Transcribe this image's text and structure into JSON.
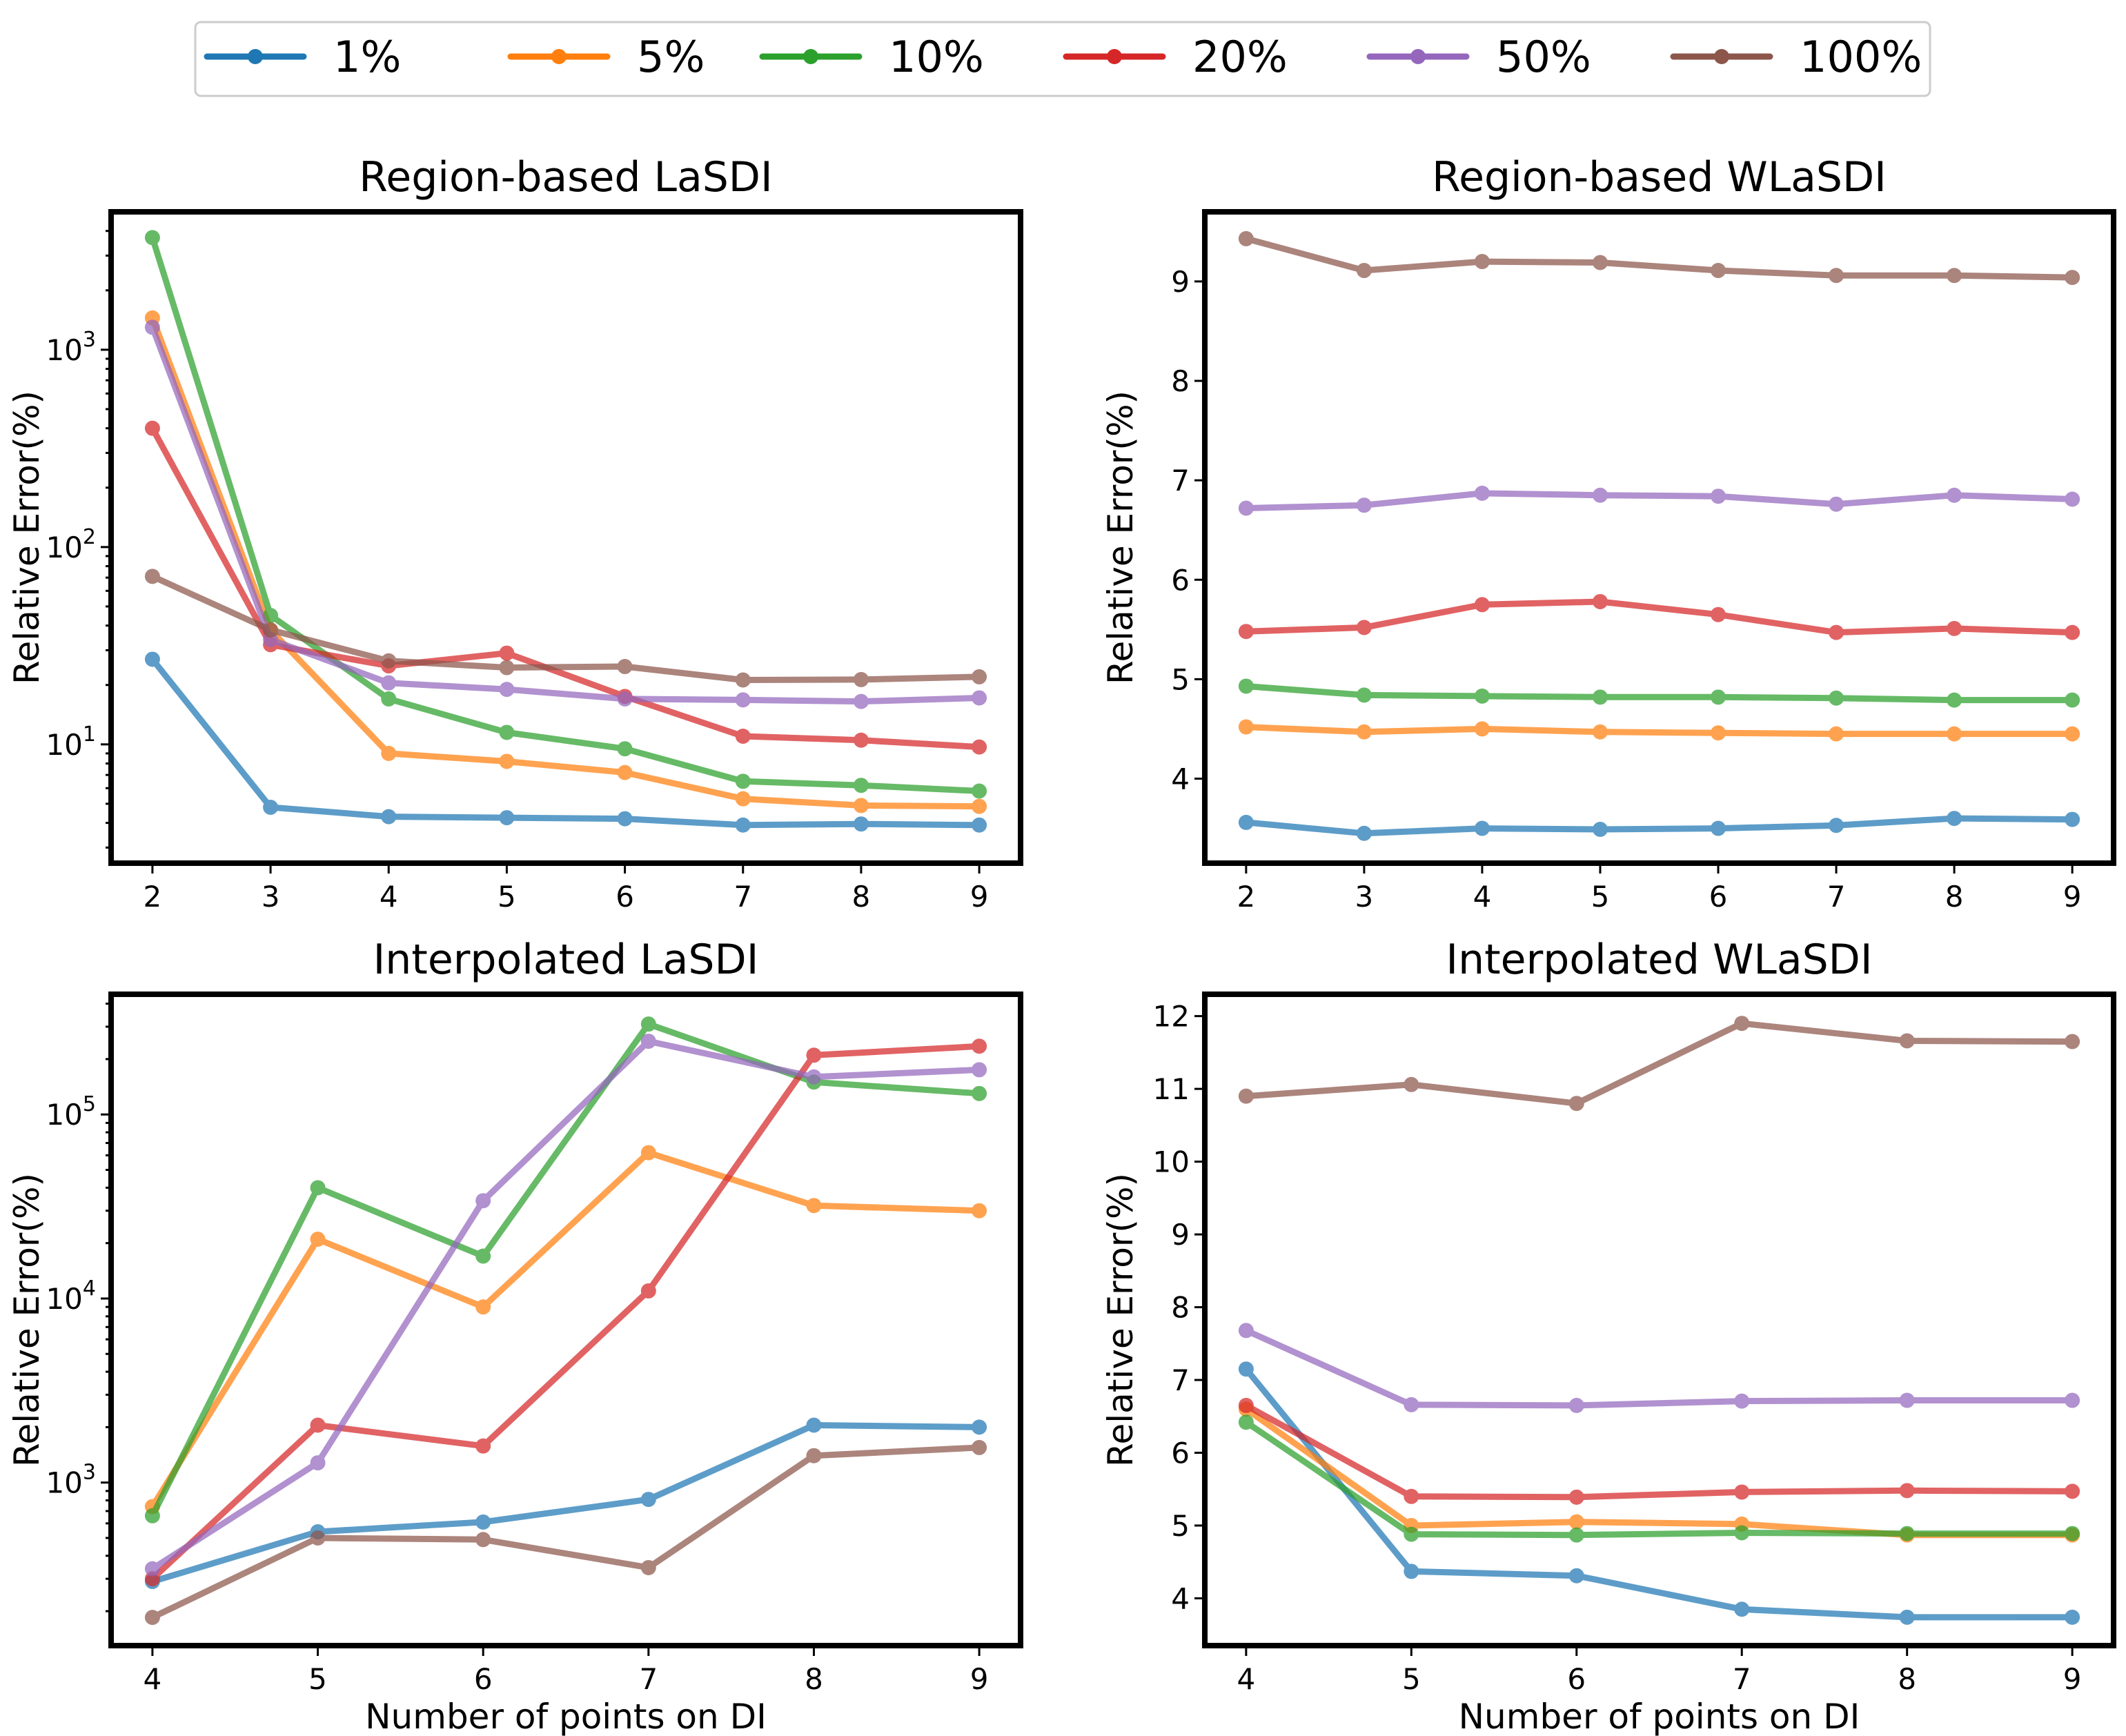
{
  "legend": {
    "entries": [
      {
        "label": "1%",
        "color": "#1f77b4"
      },
      {
        "label": "5%",
        "color": "#ff7f0e"
      },
      {
        "label": "10%",
        "color": "#2ca02c"
      },
      {
        "label": "20%",
        "color": "#d62728"
      },
      {
        "label": "50%",
        "color": "#9467bd"
      },
      {
        "label": "100%",
        "color": "#8c564b"
      }
    ]
  },
  "chart_data": [
    {
      "type": "line",
      "title": "Region-based LaSDI",
      "xlabel": "",
      "ylabel": "Relative Error(%)",
      "yscale": "log",
      "ylim": [
        2.5,
        5000
      ],
      "xlim": [
        1.65,
        9.35
      ],
      "xticks": [
        2,
        3,
        4,
        5,
        6,
        7,
        8,
        9
      ],
      "yticks": [
        {
          "value": 10,
          "base": "10",
          "exp": "1"
        },
        {
          "value": 100,
          "base": "10",
          "exp": "2"
        },
        {
          "value": 1000,
          "base": "10",
          "exp": "3"
        }
      ],
      "x": [
        2,
        3,
        4,
        5,
        6,
        7,
        8,
        9
      ],
      "series": [
        {
          "name": "1%",
          "values": [
            27,
            4.8,
            4.3,
            4.25,
            4.2,
            3.9,
            3.95,
            3.9
          ]
        },
        {
          "name": "5%",
          "values": [
            1450,
            38,
            9,
            8.2,
            7.2,
            5.3,
            4.9,
            4.85
          ]
        },
        {
          "name": "10%",
          "values": [
            3700,
            45,
            17,
            11.5,
            9.5,
            6.5,
            6.2,
            5.8
          ]
        },
        {
          "name": "20%",
          "values": [
            400,
            32,
            25,
            29,
            17.5,
            11,
            10.5,
            9.7
          ]
        },
        {
          "name": "50%",
          "values": [
            1300,
            34,
            20.5,
            19,
            17,
            16.8,
            16.5,
            17.2
          ]
        },
        {
          "name": "100%",
          "values": [
            71,
            38,
            26.5,
            24.5,
            24.8,
            21.2,
            21.3,
            22
          ]
        }
      ]
    },
    {
      "type": "line",
      "title": "Region-based WLaSDI",
      "xlabel": "",
      "ylabel": "Relative Error(%)",
      "yscale": "linear",
      "ylim": [
        3.15,
        9.7
      ],
      "xlim": [
        1.65,
        9.35
      ],
      "xticks": [
        2,
        3,
        4,
        5,
        6,
        7,
        8,
        9
      ],
      "yticks": [
        {
          "value": 4,
          "label": "4"
        },
        {
          "value": 5,
          "label": "5"
        },
        {
          "value": 6,
          "label": "6"
        },
        {
          "value": 7,
          "label": "7"
        },
        {
          "value": 8,
          "label": "8"
        },
        {
          "value": 9,
          "label": "9"
        }
      ],
      "x": [
        2,
        3,
        4,
        5,
        6,
        7,
        8,
        9
      ],
      "series": [
        {
          "name": "1%",
          "values": [
            3.56,
            3.45,
            3.5,
            3.49,
            3.5,
            3.53,
            3.6,
            3.59
          ]
        },
        {
          "name": "5%",
          "values": [
            4.52,
            4.47,
            4.5,
            4.47,
            4.46,
            4.45,
            4.45,
            4.45
          ]
        },
        {
          "name": "10%",
          "values": [
            4.93,
            4.84,
            4.83,
            4.82,
            4.82,
            4.81,
            4.79,
            4.79
          ]
        },
        {
          "name": "20%",
          "values": [
            5.48,
            5.52,
            5.75,
            5.78,
            5.65,
            5.47,
            5.51,
            5.47
          ]
        },
        {
          "name": "50%",
          "values": [
            6.72,
            6.75,
            6.87,
            6.85,
            6.84,
            6.76,
            6.85,
            6.81
          ]
        },
        {
          "name": "100%",
          "values": [
            9.43,
            9.11,
            9.2,
            9.19,
            9.11,
            9.06,
            9.06,
            9.04
          ]
        }
      ]
    },
    {
      "type": "line",
      "title": "Interpolated LaSDI",
      "xlabel": "Number of points on DI",
      "ylabel": "Relative Error(%)",
      "yscale": "log",
      "ylim": [
        130,
        450000
      ],
      "xlim": [
        3.75,
        9.25
      ],
      "xticks": [
        4,
        5,
        6,
        7,
        8,
        9
      ],
      "yticks": [
        {
          "value": 1000,
          "base": "10",
          "exp": "3"
        },
        {
          "value": 10000,
          "base": "10",
          "exp": "4"
        },
        {
          "value": 100000,
          "base": "10",
          "exp": "5"
        }
      ],
      "x": [
        4,
        5,
        6,
        7,
        8,
        9
      ],
      "series": [
        {
          "name": "1%",
          "values": [
            290,
            540,
            610,
            810,
            2050,
            2000
          ]
        },
        {
          "name": "5%",
          "values": [
            740,
            21000,
            9000,
            62000,
            32000,
            30000
          ]
        },
        {
          "name": "10%",
          "values": [
            660,
            40000,
            17000,
            310000,
            150000,
            130000
          ]
        },
        {
          "name": "20%",
          "values": [
            300,
            2050,
            1580,
            11000,
            210000,
            235000
          ]
        },
        {
          "name": "50%",
          "values": [
            340,
            1280,
            34000,
            250000,
            160000,
            175000
          ]
        },
        {
          "name": "100%",
          "values": [
            185,
            500,
            490,
            345,
            1400,
            1550
          ]
        }
      ]
    },
    {
      "type": "line",
      "title": "Interpolated WLaSDI",
      "xlabel": "Number of points on DI",
      "ylabel": "Relative Error(%)",
      "yscale": "linear",
      "ylim": [
        3.35,
        12.3
      ],
      "xlim": [
        3.75,
        9.25
      ],
      "xticks": [
        4,
        5,
        6,
        7,
        8,
        9
      ],
      "yticks": [
        {
          "value": 4,
          "label": "4"
        },
        {
          "value": 5,
          "label": "5"
        },
        {
          "value": 6,
          "label": "6"
        },
        {
          "value": 7,
          "label": "7"
        },
        {
          "value": 8,
          "label": "8"
        },
        {
          "value": 9,
          "label": "9"
        },
        {
          "value": 10,
          "label": "10"
        },
        {
          "value": 11,
          "label": "11"
        },
        {
          "value": 12,
          "label": "12"
        }
      ],
      "x": [
        4,
        5,
        6,
        7,
        8,
        9
      ],
      "series": [
        {
          "name": "1%",
          "values": [
            7.15,
            4.37,
            4.31,
            3.85,
            3.74,
            3.74
          ]
        },
        {
          "name": "5%",
          "values": [
            6.6,
            5.0,
            5.05,
            5.02,
            4.87,
            4.87
          ]
        },
        {
          "name": "10%",
          "values": [
            6.42,
            4.88,
            4.87,
            4.9,
            4.89,
            4.89
          ]
        },
        {
          "name": "20%",
          "values": [
            6.65,
            5.4,
            5.39,
            5.46,
            5.48,
            5.47
          ]
        },
        {
          "name": "50%",
          "values": [
            7.68,
            6.66,
            6.65,
            6.71,
            6.72,
            6.72
          ]
        },
        {
          "name": "100%",
          "values": [
            10.9,
            11.06,
            10.8,
            11.9,
            11.66,
            11.65
          ]
        }
      ]
    }
  ]
}
